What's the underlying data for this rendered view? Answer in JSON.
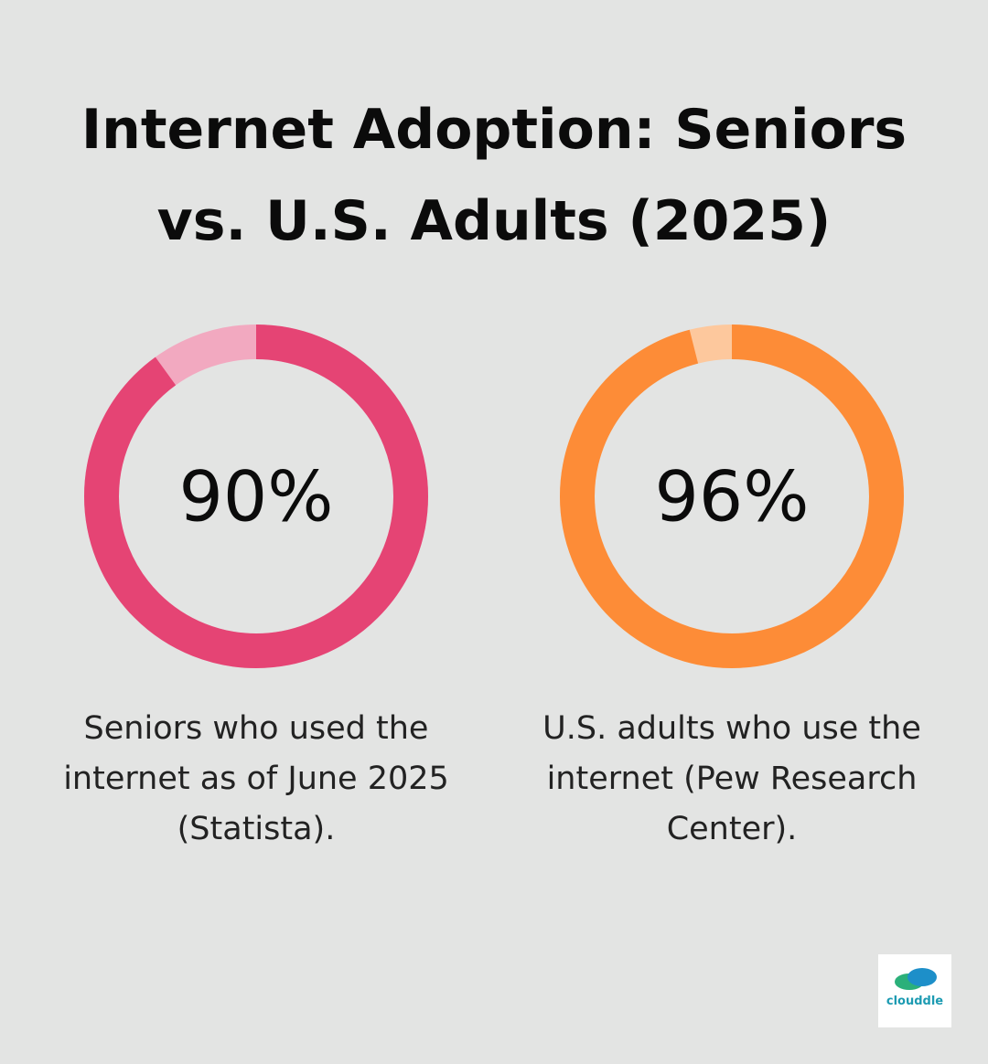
{
  "title": "Internet Adoption: Seniors vs. U.S. Adults (2025)",
  "chart_data": [
    {
      "type": "donut",
      "values": [
        90
      ],
      "value_labels": [
        "90%"
      ],
      "ylim": [
        0,
        100
      ],
      "color": "#e54474",
      "track_color": "#f2a9c0",
      "caption": "Seniors who used the internet as of June 2025 (Statista)."
    },
    {
      "type": "donut",
      "values": [
        96
      ],
      "value_labels": [
        "96%"
      ],
      "ylim": [
        0,
        100
      ],
      "color": "#fd8c37",
      "track_color": "#fdc89d",
      "caption": "U.S. adults who use the internet (Pew Research Center)."
    }
  ],
  "logo": "clouddle"
}
